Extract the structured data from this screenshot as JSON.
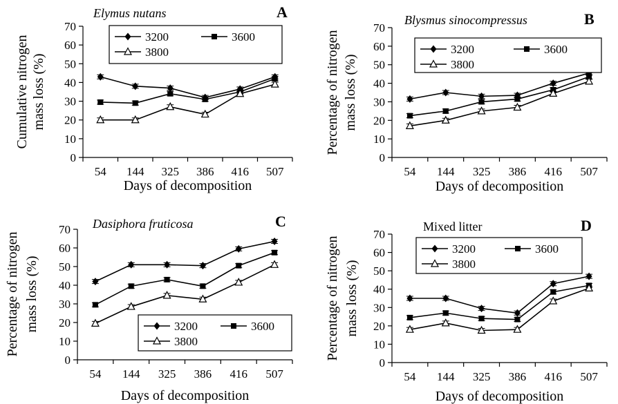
{
  "chart_data": [
    {
      "type": "line",
      "panel_letter": "A",
      "title": "Elymus nutans",
      "title_italic": true,
      "ylabel": [
        "Cumulative nitrogen",
        "mass loss (%)"
      ],
      "xlabel": "Days of decomposition",
      "categories": [
        "54",
        "144",
        "325",
        "386",
        "416",
        "507"
      ],
      "ylim": [
        0,
        70
      ],
      "yticks": [
        0,
        10,
        20,
        30,
        40,
        50,
        60,
        70
      ],
      "legend_position": "top-center",
      "series": [
        {
          "name": "3200",
          "marker": "diamond",
          "values": [
            43,
            38,
            37,
            32,
            36.5,
            43
          ]
        },
        {
          "name": "3600",
          "marker": "square",
          "values": [
            29.5,
            29,
            34,
            31,
            35,
            42
          ]
        },
        {
          "name": "3800",
          "marker": "triangle",
          "values": [
            20,
            20,
            27,
            23,
            34,
            39
          ]
        }
      ]
    },
    {
      "type": "line",
      "panel_letter": "B",
      "title": "Blysmus sinocompressus",
      "title_italic": true,
      "ylabel": [
        "Percentage of nitrogen",
        "mass loss (%)"
      ],
      "xlabel": "Days of decomposition",
      "categories": [
        "54",
        "144",
        "325",
        "386",
        "416",
        "507"
      ],
      "ylim": [
        0,
        70
      ],
      "yticks": [
        0,
        10,
        20,
        30,
        40,
        50,
        60,
        70
      ],
      "legend_position": "top-center",
      "series": [
        {
          "name": "3200",
          "marker": "diamond",
          "values": [
            31.5,
            35,
            33,
            33.5,
            40,
            45.5
          ]
        },
        {
          "name": "3600",
          "marker": "square",
          "values": [
            22.5,
            25,
            30,
            31.5,
            36.5,
            43.5
          ]
        },
        {
          "name": "3800",
          "marker": "triangle",
          "values": [
            17,
            20,
            25,
            27,
            34.5,
            41
          ]
        }
      ]
    },
    {
      "type": "line",
      "panel_letter": "C",
      "title": "Dasiphora fruticosa",
      "title_italic": true,
      "ylabel": [
        "Percentage of nitrogen",
        "mass loss (%)"
      ],
      "xlabel": "Days of decomposition",
      "categories": [
        "54",
        "144",
        "325",
        "386",
        "416",
        "507"
      ],
      "ylim": [
        0,
        70
      ],
      "yticks": [
        0,
        10,
        20,
        30,
        40,
        50,
        60,
        70
      ],
      "legend_position": "bottom-right",
      "series": [
        {
          "name": "3200",
          "marker": "diamond",
          "values": [
            42,
            51,
            51,
            50.5,
            59.5,
            63.5
          ]
        },
        {
          "name": "3600",
          "marker": "square",
          "values": [
            29.5,
            39.5,
            43,
            39.5,
            50.5,
            57.5
          ]
        },
        {
          "name": "3800",
          "marker": "triangle",
          "values": [
            19.5,
            28.5,
            34.5,
            32.5,
            41.5,
            51
          ]
        }
      ]
    },
    {
      "type": "line",
      "panel_letter": "D",
      "title": "Mixed litter",
      "title_italic": false,
      "ylabel": [
        "Percentage of nitrogen",
        "mass loss (%)"
      ],
      "xlabel": "Days of decomposition",
      "categories": [
        "54",
        "144",
        "325",
        "386",
        "416",
        "507"
      ],
      "ylim": [
        0,
        70
      ],
      "yticks": [
        0,
        10,
        20,
        30,
        40,
        50,
        60,
        70
      ],
      "legend_position": "top-center",
      "series": [
        {
          "name": "3200",
          "marker": "diamond",
          "values": [
            35,
            35,
            29.5,
            27,
            43,
            47
          ]
        },
        {
          "name": "3600",
          "marker": "square",
          "values": [
            24.5,
            27,
            24,
            23.5,
            38.5,
            42
          ]
        },
        {
          "name": "3800",
          "marker": "triangle",
          "values": [
            18,
            21.5,
            17.5,
            18,
            33.5,
            40.5
          ]
        }
      ]
    }
  ]
}
